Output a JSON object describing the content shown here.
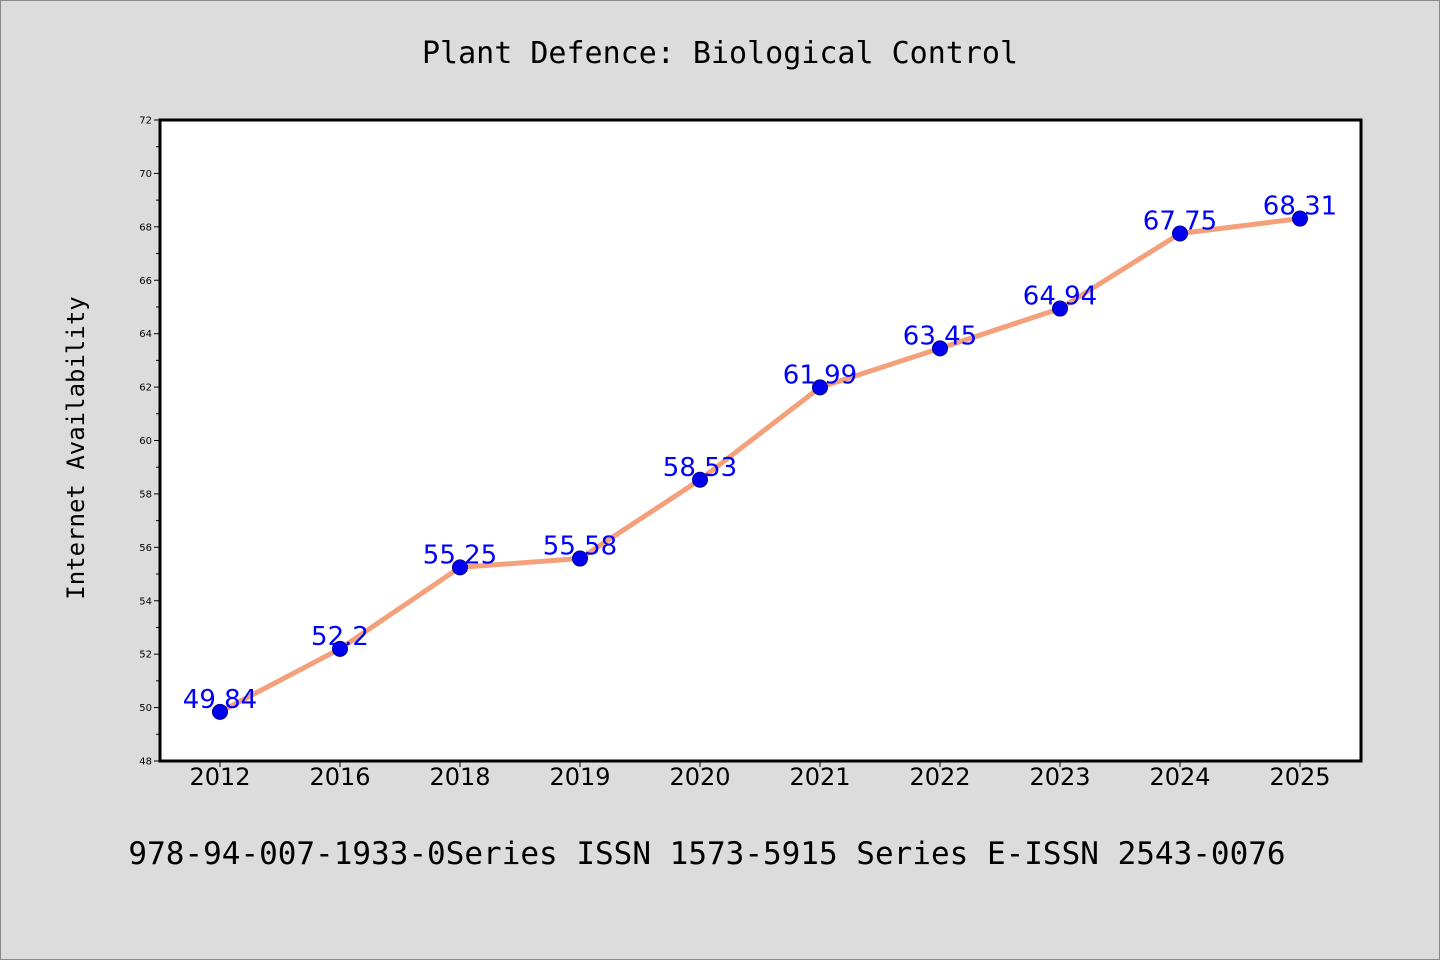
{
  "chart_data": {
    "type": "line",
    "title": "Plant Defence: Biological Control",
    "xlabel": "",
    "ylabel": "Internet Availability",
    "categories": [
      "2012",
      "2016",
      "2018",
      "2019",
      "2020",
      "2021",
      "2022",
      "2023",
      "2024",
      "2025"
    ],
    "values": [
      49.84,
      52.2,
      55.25,
      55.58,
      58.53,
      61.99,
      63.45,
      64.94,
      67.75,
      68.31
    ],
    "data_labels": [
      "49.84",
      "52.2",
      "55.25",
      "55.58",
      "58.53",
      "61.99",
      "63.45",
      "64.94",
      "67.75",
      "68.31"
    ],
    "ylim": [
      48,
      72
    ],
    "yticks": [
      "48",
      "50",
      "52",
      "54",
      "56",
      "58",
      "60",
      "62",
      "64",
      "66",
      "68",
      "70",
      "72"
    ],
    "grid": false,
    "legend": "none",
    "colors": {
      "line": "#f4a07a",
      "marker": "#0000ee",
      "marker_edge": "#00008b",
      "data_label": "#0000ff",
      "plot_background": "#ffffff",
      "figure_background": "#dcdcdc"
    }
  },
  "footer": {
    "text": "978-94-007-1933-0Series ISSN 1573-5915 Series E-ISSN 2543-0076"
  }
}
